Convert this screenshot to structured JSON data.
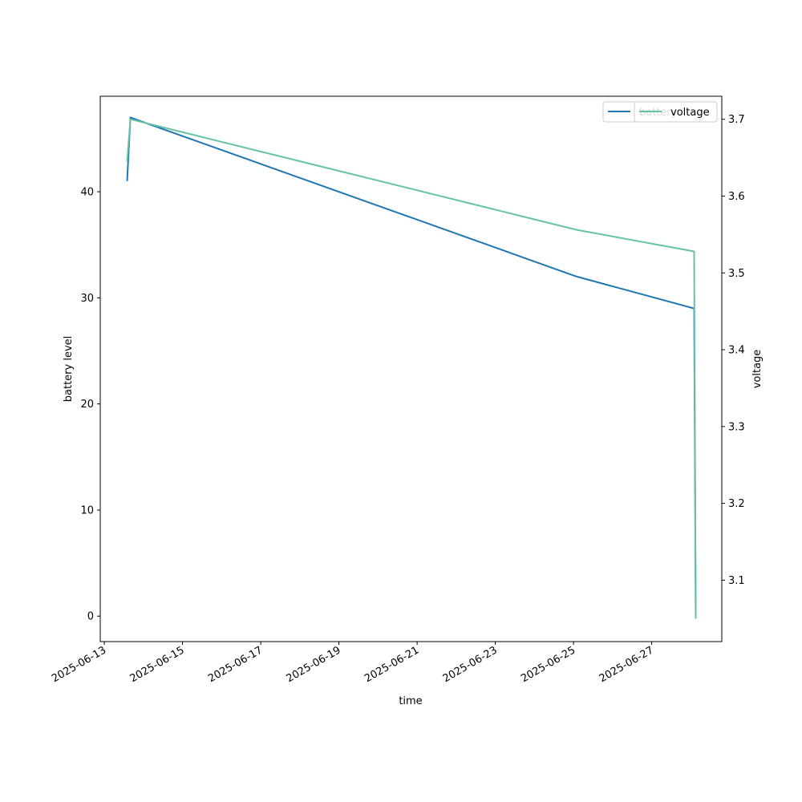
{
  "chart_data": {
    "type": "line",
    "title": "",
    "xlabel": "time",
    "ylabel": "battery level",
    "y2label": "voltage",
    "grid": false,
    "legend_placement": "top-right",
    "xlim": [
      "2025-06-12T21:30",
      "2025-06-28T19:00"
    ],
    "ylim": [
      -2.4,
      49.0
    ],
    "y2lim": [
      3.02,
      3.73
    ],
    "xticks": [
      "2025-06-13",
      "2025-06-15",
      "2025-06-17",
      "2025-06-19",
      "2025-06-21",
      "2025-06-23",
      "2025-06-25",
      "2025-06-27"
    ],
    "yticks": [
      0,
      10,
      20,
      30,
      40
    ],
    "y2ticks": [
      "3.1",
      "3.2",
      "3.3",
      "3.4",
      "3.5",
      "3.6",
      "3.7"
    ],
    "series": [
      {
        "name": "battery",
        "axis": "left",
        "color": "#1f77b4",
        "x": [
          "2025-06-13T14:00",
          "2025-06-13T16:00",
          "2025-06-25T02:00",
          "2025-06-28T02:00",
          "2025-06-28T03:00"
        ],
        "values": [
          41,
          47,
          32,
          29,
          0
        ]
      },
      {
        "name": "voltage",
        "axis": "right",
        "color": "#66c2a5",
        "x": [
          "2025-06-13T14:00",
          "2025-06-13T16:00",
          "2025-06-25T02:00",
          "2025-06-28T02:00",
          "2025-06-28T03:00"
        ],
        "values": [
          3.645,
          3.7,
          3.556,
          3.528,
          3.05
        ]
      }
    ]
  }
}
